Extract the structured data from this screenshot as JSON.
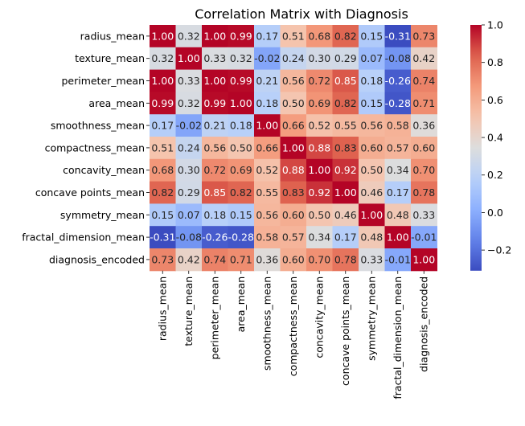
{
  "chart_data": {
    "type": "heatmap",
    "title": "Correlation Matrix with Diagnosis",
    "labels": [
      "radius_mean",
      "texture_mean",
      "perimeter_mean",
      "area_mean",
      "smoothness_mean",
      "compactness_mean",
      "concavity_mean",
      "concave points_mean",
      "symmetry_mean",
      "fractal_dimension_mean",
      "diagnosis_encoded"
    ],
    "values": [
      [
        1.0,
        0.32,
        1.0,
        0.99,
        0.17,
        0.51,
        0.68,
        0.82,
        0.15,
        -0.31,
        0.73
      ],
      [
        0.32,
        1.0,
        0.33,
        0.32,
        -0.02,
        0.24,
        0.3,
        0.29,
        0.07,
        -0.08,
        0.42
      ],
      [
        1.0,
        0.33,
        1.0,
        0.99,
        0.21,
        0.56,
        0.72,
        0.85,
        0.18,
        -0.26,
        0.74
      ],
      [
        0.99,
        0.32,
        0.99,
        1.0,
        0.18,
        0.5,
        0.69,
        0.82,
        0.15,
        -0.28,
        0.71
      ],
      [
        0.17,
        -0.02,
        0.21,
        0.18,
        1.0,
        0.66,
        0.52,
        0.55,
        0.56,
        0.58,
        0.36
      ],
      [
        0.51,
        0.24,
        0.56,
        0.5,
        0.66,
        1.0,
        0.88,
        0.83,
        0.6,
        0.57,
        0.6
      ],
      [
        0.68,
        0.3,
        0.72,
        0.69,
        0.52,
        0.88,
        1.0,
        0.92,
        0.5,
        0.34,
        0.7
      ],
      [
        0.82,
        0.29,
        0.85,
        0.82,
        0.55,
        0.83,
        0.92,
        1.0,
        0.46,
        0.17,
        0.78
      ],
      [
        0.15,
        0.07,
        0.18,
        0.15,
        0.56,
        0.6,
        0.5,
        0.46,
        1.0,
        0.48,
        0.33
      ],
      [
        -0.31,
        -0.08,
        -0.26,
        -0.28,
        0.58,
        0.57,
        0.34,
        0.17,
        0.48,
        1.0,
        -0.01
      ],
      [
        0.73,
        0.42,
        0.74,
        0.71,
        0.36,
        0.6,
        0.7,
        0.78,
        0.33,
        -0.01,
        1.0
      ]
    ],
    "colormap": "coolwarm",
    "vmin": -0.31,
    "vmax": 1.0,
    "colorbar_ticks": [
      1.0,
      0.8,
      0.6,
      0.4,
      0.2,
      0.0,
      -0.2
    ],
    "colorbar_tick_labels": [
      "1.0",
      "0.8",
      "0.6",
      "0.4",
      "0.2",
      "0.0",
      "−0.2"
    ],
    "annotation_format": "0.00",
    "xlabel": "",
    "ylabel": ""
  }
}
